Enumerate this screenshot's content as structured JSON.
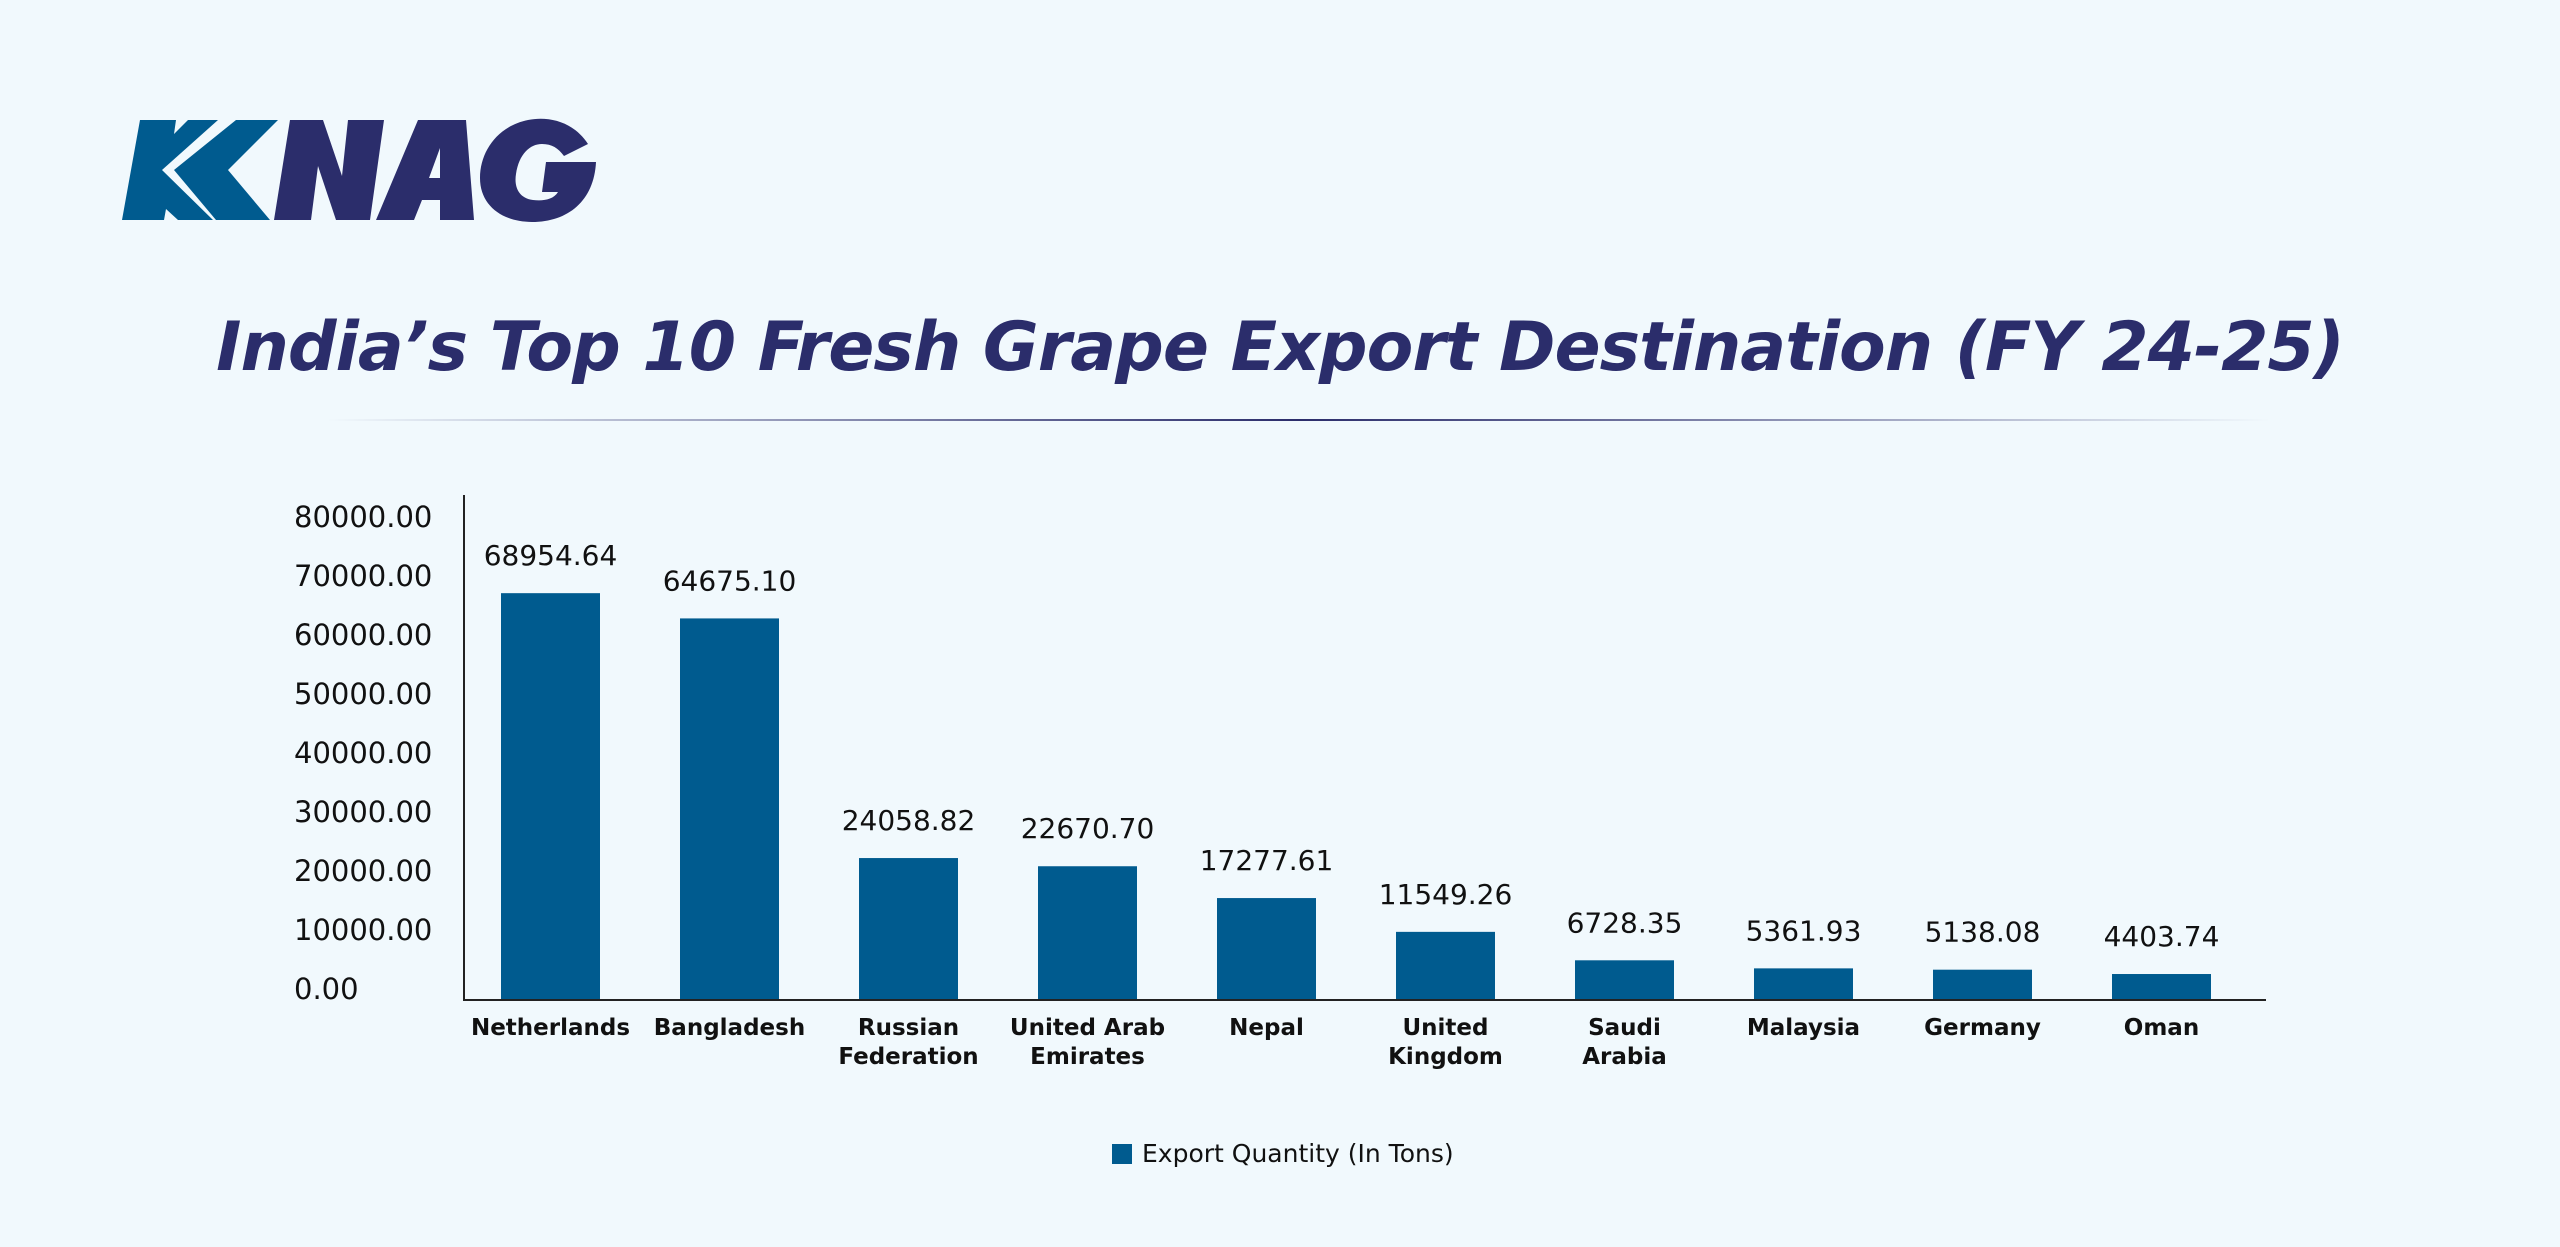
{
  "logo": {
    "text": "KNAG",
    "colors": {
      "k": "#005b8f",
      "nag": "#2b2d6b"
    }
  },
  "title": "India’s Top 10 Fresh Grape Export Destination (FY 24-25)",
  "chart_data": {
    "type": "bar",
    "title": "India’s Top 10 Fresh Grape Export Destination (FY 24-25)",
    "categories": [
      [
        "Netherlands"
      ],
      [
        "Bangladesh"
      ],
      [
        "Russian",
        "Federation"
      ],
      [
        "United Arab",
        "Emirates"
      ],
      [
        "Nepal"
      ],
      [
        "United",
        "Kingdom"
      ],
      [
        "Saudi",
        "Arabia"
      ],
      [
        "Malaysia"
      ],
      [
        "Germany"
      ],
      [
        "Oman"
      ]
    ],
    "series": [
      {
        "name": "Export Quantity (In Tons)",
        "values": [
          68954.64,
          64675.1,
          24058.82,
          22670.7,
          17277.61,
          11549.26,
          6728.35,
          5361.93,
          5138.08,
          4403.74
        ],
        "color": "#005b8f"
      }
    ],
    "data_labels": [
      "68954.64",
      "64675.10",
      "24058.82",
      "22670.70",
      "17277.61",
      "11549.26",
      "6728.35",
      "5361.93",
      "5138.08",
      "4403.74"
    ],
    "yticks": [
      "0.00",
      "10000.00",
      "20000.00",
      "30000.00",
      "40000.00",
      "50000.00",
      "60000.00",
      "70000.00",
      "80000.00"
    ],
    "ylim": [
      0,
      80000
    ],
    "grid": false,
    "legend": "bottom-center",
    "xlabel": "",
    "ylabel": ""
  }
}
